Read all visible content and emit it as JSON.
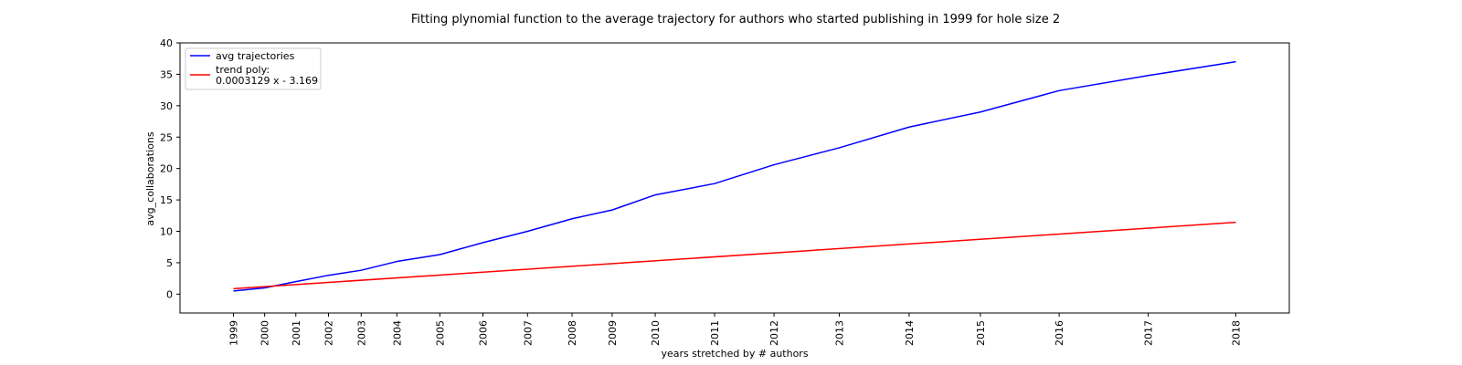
{
  "chart_data": {
    "type": "line",
    "title": "Fitting plynomial function to the average trajectory for authors who started publishing in 1999 for hole size 2",
    "xlabel": "years stretched by # authors",
    "ylabel": "avg_collaborations",
    "ylim": [
      -3,
      40
    ],
    "yticks": [
      0,
      5,
      10,
      15,
      20,
      25,
      30,
      35,
      40
    ],
    "x_tick_labels": [
      "1999",
      "2000",
      "2001",
      "2002",
      "2003",
      "2004",
      "2005",
      "2006",
      "2007",
      "2008",
      "2009",
      "2010",
      "2011",
      "2012",
      "2013",
      "2014",
      "2015",
      "2016",
      "2017",
      "2018"
    ],
    "x_tick_values": [
      12900,
      13950,
      15000,
      16100,
      17200,
      18400,
      19850,
      21300,
      22800,
      24300,
      25650,
      27100,
      29100,
      31100,
      33300,
      35650,
      38050,
      40700,
      43700,
      46650
    ],
    "xlim": [
      11100,
      48450
    ],
    "grid": false,
    "legend_position": "upper left",
    "series": [
      {
        "name": "avg trajectories",
        "color": "#0000ff",
        "points": [
          [
            12900,
            0.5
          ],
          [
            13950,
            1.0
          ],
          [
            15000,
            2.0
          ],
          [
            16100,
            3.0
          ],
          [
            17200,
            3.8
          ],
          [
            18400,
            5.2
          ],
          [
            19850,
            6.3
          ],
          [
            21300,
            8.2
          ],
          [
            22800,
            10.0
          ],
          [
            24300,
            12.0
          ],
          [
            25650,
            13.4
          ],
          [
            27100,
            15.8
          ],
          [
            29100,
            17.6
          ],
          [
            31100,
            20.6
          ],
          [
            33300,
            23.3
          ],
          [
            35650,
            26.6
          ],
          [
            38050,
            29.0
          ],
          [
            40700,
            32.4
          ],
          [
            43700,
            34.8
          ],
          [
            46650,
            37.0
          ]
        ]
      },
      {
        "name": "trend poly:\n0.0003129 x - 3.169",
        "legend_lines": [
          "trend poly:",
          "0.0003129 x - 3.169"
        ],
        "color": "#ff0000",
        "slope": 0.0003129,
        "intercept": -3.169
      }
    ]
  }
}
